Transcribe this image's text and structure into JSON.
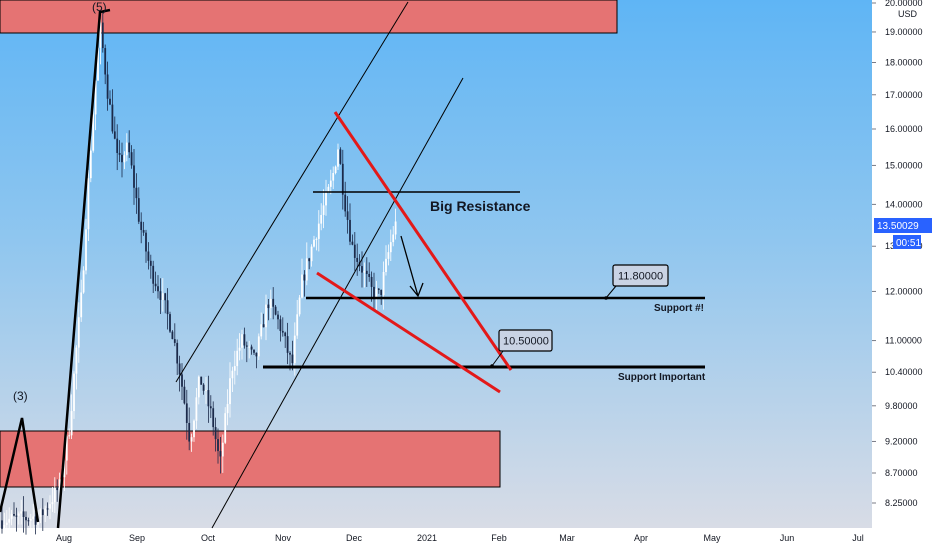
{
  "chart_data": {
    "type": "candlestick",
    "currency": "USD",
    "y_scale": "log",
    "ylim": [
      8.0,
      20.0
    ],
    "price_ticks": [
      "8.25000",
      "8.70000",
      "9.20000",
      "9.80000",
      "10.40000",
      "11.00000",
      "12.00000",
      "13.00000",
      "14.00000",
      "15.00000",
      "16.00000",
      "17.00000",
      "18.00000",
      "19.00000",
      "20.00000"
    ],
    "x_ticks": [
      "Aug",
      "Sep",
      "Oct",
      "Nov",
      "Dec",
      "2021",
      "Feb",
      "Mar",
      "Apr",
      "May",
      "Jun",
      "Jul"
    ],
    "last_price": "13.50029",
    "countdown": "00:51",
    "annotations": {
      "big_resistance": "Big Resistance",
      "support_1": "Support #!",
      "support_important": "Support Important",
      "price_tag_1": "11.80000",
      "price_tag_2": "10.50000",
      "wave_3": "(3)",
      "wave_5": "(5)"
    },
    "zones": [
      {
        "name": "upper-supply-zone",
        "from": 19.0,
        "to": 20.0
      },
      {
        "name": "lower-demand-zone",
        "from": 8.45,
        "to": 9.35
      }
    ],
    "levels": [
      {
        "name": "big-resistance-level",
        "price": 14.2
      },
      {
        "name": "support-1-level",
        "price": 11.8
      },
      {
        "name": "support-important-level",
        "price": 10.5
      }
    ]
  },
  "colors": {
    "bg_top": "#5fb5f5",
    "bg_bottom": "#d8dce6",
    "zone_fill": "#e57373",
    "trend_red": "#e31919",
    "last_price_bg": "#2962ff"
  }
}
